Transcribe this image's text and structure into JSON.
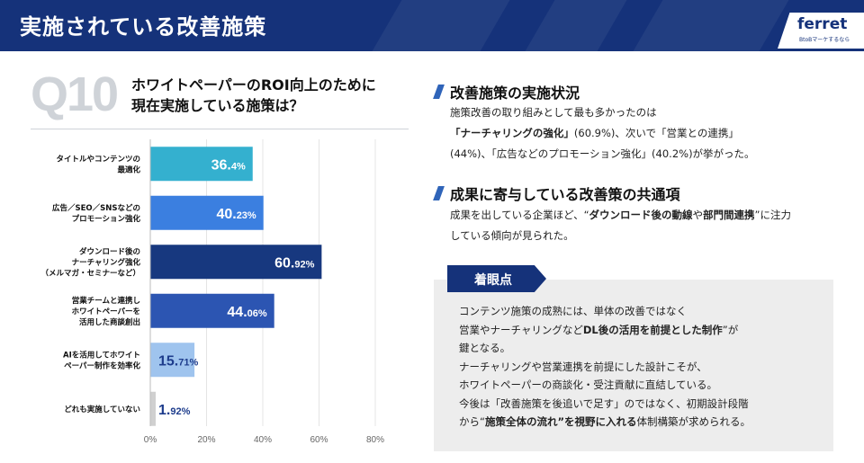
{
  "header": {
    "title": "実施されている改善施策"
  },
  "logo": {
    "name": "ferret",
    "tagline": "BtoBマーケするなら"
  },
  "question": {
    "number": "Q10",
    "line1": "ホワイトペーパーのROI向上のために",
    "line2": "現在実施している施策は？"
  },
  "chart_data": {
    "type": "bar",
    "orientation": "horizontal",
    "categories": [
      [
        "タイトルやコンテンツの",
        "最適化"
      ],
      [
        "広告／SEO／SNSなどの",
        "プロモーション強化"
      ],
      [
        "ダウンロード後の",
        "ナーチャリング強化",
        "（メルマガ・セミナーなど）"
      ],
      [
        "営業チームと連携し",
        "ホワイトペーパーを",
        "活用した商談創出"
      ],
      [
        "AIを活用してホワイト",
        "ペーパー制作を効率化"
      ],
      [
        "どれも実施していない"
      ]
    ],
    "values": [
      36.4,
      40.23,
      60.92,
      44.06,
      15.71,
      1.92
    ],
    "value_labels": [
      {
        "int": "36.",
        "dec": "4%"
      },
      {
        "int": "40.",
        "dec": "23%"
      },
      {
        "int": "60.",
        "dec": "92%"
      },
      {
        "int": "44.",
        "dec": "06%"
      },
      {
        "int": "15.",
        "dec": "71%"
      },
      {
        "int": "1.",
        "dec": "92%"
      }
    ],
    "colors": [
      "#34b0cf",
      "#3b7fe0",
      "#17387f",
      "#2c55b2",
      "#9fc4ee",
      "#d0d0d0"
    ],
    "label_colors": [
      "#ffffff",
      "#ffffff",
      "#ffffff",
      "#ffffff",
      "#1d3c8c",
      "#1d3c8c"
    ],
    "xlim": [
      0,
      80
    ],
    "xticks": [
      "0%",
      "20%",
      "40%",
      "60%",
      "80%"
    ],
    "grid": true
  },
  "section1": {
    "title": "改善施策の実施状況",
    "line1": "施策改善の取り組みとして最も多かったのは",
    "line2_bold": "「ナーチャリングの強化」",
    "line2_rest": "(60.9%)、次いで「営業との連携」",
    "line3": "(44%)、「広告などのプロモーション強化」(40.2%)が挙がった。"
  },
  "section2": {
    "title": "成果に寄与している改善策の共通項",
    "line1_pre": "成果を出している企業ほど、“",
    "line1_b1": "ダウンロード後の動線",
    "line1_mid": "や",
    "line1_b2": "部門間連携",
    "line1_post": "”に注力",
    "line2": "している傾向が見られた。"
  },
  "point": {
    "badge": "着眼点",
    "l1": "コンテンツ施策の成熟には、単体の改善ではなく",
    "l2_pre": "営業やナーチャリングなど",
    "l2_bold": "DL後の活用を前提とした制作",
    "l2_post": "”が",
    "l3": "鍵となる。",
    "l4": "ナーチャリングや営業連携を前提にした設計こそが、",
    "l5": "ホワイトペーパーの商談化・受注貢献に直結している。",
    "l6": "今後は「改善施策を後追いで足す」のではなく、初期設計段階",
    "l7_pre": "から“",
    "l7_bold": "施策全体の流れ”を視野に入れる",
    "l7_post": "体制構築が求められる。"
  }
}
